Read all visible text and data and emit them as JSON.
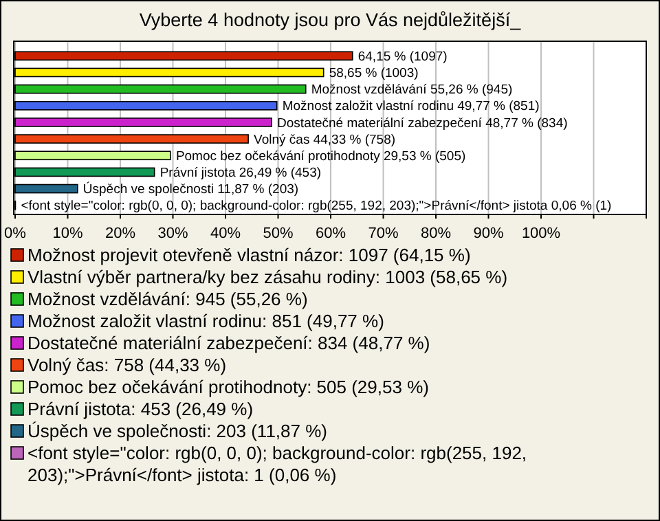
{
  "chart_data": {
    "type": "bar",
    "orientation": "horizontal",
    "stacked": true,
    "title": "Vyberte 4 hodnoty jsou pro Vás nejdůležitější_",
    "categories": [
      null,
      null,
      null,
      null,
      null,
      null,
      null,
      null,
      null,
      null
    ],
    "series": [
      {
        "name": "Možnost projevit otevřeně vlastní názor: 1097 (64,15 %)",
        "color": "#cc2200",
        "values": [
          64.15,
          null,
          null,
          null,
          null,
          null,
          null,
          null,
          null,
          null
        ],
        "value_labels": [
          "64,15 % (1097)",
          null,
          null,
          null,
          null,
          null,
          null,
          null,
          null,
          null
        ]
      },
      {
        "name": "Vlastní výběr partnera/ky bez zásahu rodiny: 1003 (58,65 %)",
        "color": "#ffee00",
        "values": [
          null,
          58.65,
          null,
          null,
          null,
          null,
          null,
          null,
          null,
          null
        ],
        "value_labels": [
          null,
          "58,65 % (1003)",
          null,
          null,
          null,
          null,
          null,
          null,
          null,
          null
        ]
      },
      {
        "name": "Možnost vzdělávání: 945 (55,26 %)",
        "color": "#22bb22",
        "values": [
          null,
          null,
          55.26,
          null,
          null,
          null,
          null,
          null,
          null,
          null
        ],
        "value_labels": [
          null,
          null,
          "Možnost vzdělávání 55,26 % (945)",
          null,
          null,
          null,
          null,
          null,
          null,
          null
        ]
      },
      {
        "name": "Možnost založit vlastní rodinu: 851 (49,77 %)",
        "color": "#4466ee",
        "values": [
          null,
          null,
          null,
          49.77,
          null,
          null,
          null,
          null,
          null,
          null
        ],
        "value_labels": [
          null,
          null,
          null,
          "Možnost založit vlastní rodinu 49,77 % (851)",
          null,
          null,
          null,
          null,
          null,
          null
        ]
      },
      {
        "name": "Dostatečné materiální zabezpečení: 834 (48,77 %)",
        "color": "#cc22cc",
        "values": [
          null,
          null,
          null,
          null,
          48.77,
          null,
          null,
          null,
          null,
          null
        ],
        "value_labels": [
          null,
          null,
          null,
          null,
          "Dostatečné materiální zabezpečení 48,77 % (834)",
          null,
          null,
          null,
          null,
          null
        ]
      },
      {
        "name": "Volný čas: 758 (44,33 %)",
        "color": "#ee4411",
        "values": [
          null,
          null,
          null,
          null,
          null,
          44.33,
          null,
          null,
          null,
          null
        ],
        "value_labels": [
          null,
          null,
          null,
          null,
          null,
          "Volný čas 44,33 % (758)",
          null,
          null,
          null,
          null
        ]
      },
      {
        "name": "Pomoc bez očekávání protihodnoty: 505 (29,53 %)",
        "color": "#ccff88",
        "values": [
          null,
          null,
          null,
          null,
          null,
          null,
          29.53,
          null,
          null,
          null
        ],
        "value_labels": [
          null,
          null,
          null,
          null,
          null,
          null,
          "Pomoc bez očekávání protihodnoty 29,53 % (505)",
          null,
          null,
          null
        ]
      },
      {
        "name": "Právní jistota: 453 (26,49 %)",
        "color": "#119955",
        "values": [
          null,
          null,
          null,
          null,
          null,
          null,
          null,
          26.49,
          null,
          null
        ],
        "value_labels": [
          null,
          null,
          null,
          null,
          null,
          null,
          null,
          "Právní jistota 26,49 % (453)",
          null,
          null
        ]
      },
      {
        "name": "Úspěch ve společnosti: 203 (11,87 %)",
        "color": "#226688",
        "values": [
          null,
          null,
          null,
          null,
          null,
          null,
          null,
          null,
          11.87,
          null
        ],
        "value_labels": [
          null,
          null,
          null,
          null,
          null,
          null,
          null,
          null,
          "Úspěch ve společnosti 11,87 % (203)",
          null
        ]
      },
      {
        "name": "<font style=\"color: rgb(0, 0, 0); background-color: rgb(255, 192, 203);\">Právní</font> jistota: 1 (0,06 %)",
        "color": "#bb66bb",
        "values": [
          null,
          null,
          null,
          null,
          null,
          null,
          null,
          null,
          null,
          0.06
        ],
        "value_labels": [
          null,
          null,
          null,
          null,
          null,
          null,
          null,
          null,
          null,
          "<font style=\"color: rgb(0, 0, 0); background-color: rgb(255, 192, 203);\">Právní</font> jistota 0,06 % (1)"
        ]
      }
    ],
    "xlim": [
      0,
      120
    ],
    "xticks": [
      {
        "value": 0,
        "label": "0%"
      },
      {
        "value": 10,
        "label": "10%"
      },
      {
        "value": 20,
        "label": "20%"
      },
      {
        "value": 30,
        "label": "30%"
      },
      {
        "value": 40,
        "label": "40%"
      },
      {
        "value": 50,
        "label": "50%"
      },
      {
        "value": 60,
        "label": "60%"
      },
      {
        "value": 70,
        "label": "70%"
      },
      {
        "value": 80,
        "label": "80%"
      },
      {
        "value": 90,
        "label": "90%"
      },
      {
        "value": 100,
        "label": "100%"
      },
      {
        "value": 110,
        "label": null
      },
      {
        "value": 120,
        "label": null
      }
    ],
    "grid": "x",
    "legend": "bottom",
    "tick_labels": "x"
  }
}
